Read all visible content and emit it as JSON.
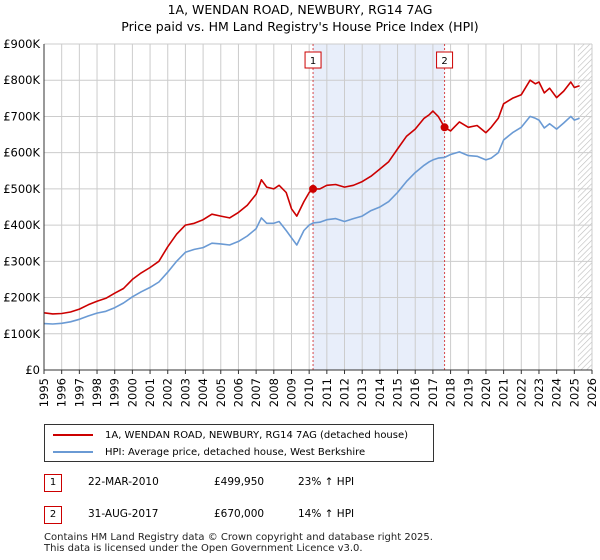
{
  "header": {
    "title": "1A, WENDAN ROAD, NEWBURY, RG14 7AG",
    "subtitle": "Price paid vs. HM Land Registry's House Price Index (HPI)"
  },
  "colors": {
    "property": "#cc0000",
    "hpi": "#6a9ad4",
    "band": "#e8eefa",
    "marker_border": "#cc0000",
    "grid": "#cccccc"
  },
  "chart_data": {
    "type": "line",
    "title": "1A, WENDAN ROAD, NEWBURY, RG14 7AG",
    "subtitle": "Price paid vs. HM Land Registry's House Price Index (HPI)",
    "xlabel": "",
    "ylabel": "",
    "xlim": [
      1995,
      2026
    ],
    "ylim": [
      0,
      900000
    ],
    "grid": true,
    "x_ticks": [
      "1995",
      "1996",
      "1997",
      "1998",
      "1999",
      "2000",
      "2001",
      "2002",
      "2003",
      "2004",
      "2005",
      "2006",
      "2007",
      "2008",
      "2009",
      "2010",
      "2011",
      "2012",
      "2013",
      "2014",
      "2015",
      "2016",
      "2017",
      "2018",
      "2019",
      "2020",
      "2021",
      "2022",
      "2023",
      "2024",
      "2025",
      "2026"
    ],
    "y_ticks": [
      {
        "value": 0,
        "label": "£0"
      },
      {
        "value": 100000,
        "label": "£100K"
      },
      {
        "value": 200000,
        "label": "£200K"
      },
      {
        "value": 300000,
        "label": "£300K"
      },
      {
        "value": 400000,
        "label": "£400K"
      },
      {
        "value": 500000,
        "label": "£500K"
      },
      {
        "value": 600000,
        "label": "£600K"
      },
      {
        "value": 700000,
        "label": "£700K"
      },
      {
        "value": 800000,
        "label": "£800K"
      },
      {
        "value": 900000,
        "label": "£900K"
      }
    ],
    "series": [
      {
        "name": "1A, WENDAN ROAD, NEWBURY, RG14 7AG (detached house)",
        "color": "#cc0000",
        "points": [
          [
            1995.0,
            158000
          ],
          [
            1995.5,
            155000
          ],
          [
            1996.0,
            156000
          ],
          [
            1996.5,
            160000
          ],
          [
            1997.0,
            168000
          ],
          [
            1997.5,
            180000
          ],
          [
            1998.0,
            190000
          ],
          [
            1998.5,
            198000
          ],
          [
            1999.0,
            212000
          ],
          [
            1999.5,
            225000
          ],
          [
            2000.0,
            250000
          ],
          [
            2000.5,
            268000
          ],
          [
            2001.0,
            283000
          ],
          [
            2001.5,
            300000
          ],
          [
            2002.0,
            340000
          ],
          [
            2002.5,
            375000
          ],
          [
            2003.0,
            400000
          ],
          [
            2003.5,
            405000
          ],
          [
            2004.0,
            415000
          ],
          [
            2004.5,
            430000
          ],
          [
            2005.0,
            425000
          ],
          [
            2005.5,
            420000
          ],
          [
            2006.0,
            435000
          ],
          [
            2006.5,
            455000
          ],
          [
            2007.0,
            485000
          ],
          [
            2007.3,
            525000
          ],
          [
            2007.6,
            505000
          ],
          [
            2008.0,
            500000
          ],
          [
            2008.3,
            510000
          ],
          [
            2008.7,
            490000
          ],
          [
            2009.0,
            445000
          ],
          [
            2009.3,
            425000
          ],
          [
            2009.7,
            465000
          ],
          [
            2010.0,
            490000
          ],
          [
            2010.22,
            499950
          ],
          [
            2010.6,
            500000
          ],
          [
            2011.0,
            510000
          ],
          [
            2011.5,
            512000
          ],
          [
            2012.0,
            505000
          ],
          [
            2012.5,
            510000
          ],
          [
            2013.0,
            520000
          ],
          [
            2013.5,
            535000
          ],
          [
            2014.0,
            555000
          ],
          [
            2014.5,
            575000
          ],
          [
            2015.0,
            610000
          ],
          [
            2015.5,
            645000
          ],
          [
            2016.0,
            665000
          ],
          [
            2016.5,
            695000
          ],
          [
            2016.8,
            705000
          ],
          [
            2017.0,
            715000
          ],
          [
            2017.3,
            700000
          ],
          [
            2017.66,
            670000
          ],
          [
            2018.0,
            660000
          ],
          [
            2018.5,
            685000
          ],
          [
            2019.0,
            670000
          ],
          [
            2019.5,
            675000
          ],
          [
            2020.0,
            655000
          ],
          [
            2020.3,
            670000
          ],
          [
            2020.7,
            695000
          ],
          [
            2021.0,
            735000
          ],
          [
            2021.5,
            750000
          ],
          [
            2022.0,
            760000
          ],
          [
            2022.5,
            800000
          ],
          [
            2022.8,
            790000
          ],
          [
            2023.0,
            795000
          ],
          [
            2023.3,
            765000
          ],
          [
            2023.6,
            778000
          ],
          [
            2024.0,
            752000
          ],
          [
            2024.4,
            770000
          ],
          [
            2024.8,
            795000
          ],
          [
            2025.0,
            780000
          ],
          [
            2025.3,
            785000
          ]
        ]
      },
      {
        "name": "HPI: Average price, detached house, West Berkshire",
        "color": "#6a9ad4",
        "points": [
          [
            1995.0,
            128000
          ],
          [
            1995.5,
            127000
          ],
          [
            1996.0,
            129000
          ],
          [
            1996.5,
            133000
          ],
          [
            1997.0,
            140000
          ],
          [
            1997.5,
            149000
          ],
          [
            1998.0,
            157000
          ],
          [
            1998.5,
            162000
          ],
          [
            1999.0,
            172000
          ],
          [
            1999.5,
            185000
          ],
          [
            2000.0,
            202000
          ],
          [
            2000.5,
            216000
          ],
          [
            2001.0,
            228000
          ],
          [
            2001.5,
            243000
          ],
          [
            2002.0,
            270000
          ],
          [
            2002.5,
            300000
          ],
          [
            2003.0,
            325000
          ],
          [
            2003.5,
            333000
          ],
          [
            2004.0,
            338000
          ],
          [
            2004.5,
            350000
          ],
          [
            2005.0,
            348000
          ],
          [
            2005.5,
            345000
          ],
          [
            2006.0,
            355000
          ],
          [
            2006.5,
            370000
          ],
          [
            2007.0,
            390000
          ],
          [
            2007.3,
            420000
          ],
          [
            2007.6,
            405000
          ],
          [
            2008.0,
            405000
          ],
          [
            2008.3,
            410000
          ],
          [
            2008.7,
            385000
          ],
          [
            2009.0,
            365000
          ],
          [
            2009.3,
            345000
          ],
          [
            2009.7,
            385000
          ],
          [
            2010.0,
            400000
          ],
          [
            2010.22,
            406000
          ],
          [
            2010.6,
            408000
          ],
          [
            2011.0,
            415000
          ],
          [
            2011.5,
            418000
          ],
          [
            2012.0,
            410000
          ],
          [
            2012.5,
            418000
          ],
          [
            2013.0,
            425000
          ],
          [
            2013.5,
            440000
          ],
          [
            2014.0,
            450000
          ],
          [
            2014.5,
            465000
          ],
          [
            2015.0,
            490000
          ],
          [
            2015.5,
            520000
          ],
          [
            2016.0,
            545000
          ],
          [
            2016.5,
            565000
          ],
          [
            2016.8,
            575000
          ],
          [
            2017.0,
            580000
          ],
          [
            2017.3,
            585000
          ],
          [
            2017.66,
            587000
          ],
          [
            2018.0,
            595000
          ],
          [
            2018.5,
            602000
          ],
          [
            2019.0,
            592000
          ],
          [
            2019.5,
            590000
          ],
          [
            2020.0,
            580000
          ],
          [
            2020.3,
            585000
          ],
          [
            2020.7,
            600000
          ],
          [
            2021.0,
            635000
          ],
          [
            2021.5,
            655000
          ],
          [
            2022.0,
            670000
          ],
          [
            2022.5,
            700000
          ],
          [
            2022.8,
            695000
          ],
          [
            2023.0,
            690000
          ],
          [
            2023.3,
            668000
          ],
          [
            2023.6,
            680000
          ],
          [
            2024.0,
            665000
          ],
          [
            2024.4,
            682000
          ],
          [
            2024.8,
            700000
          ],
          [
            2025.0,
            690000
          ],
          [
            2025.3,
            695000
          ]
        ]
      }
    ],
    "shaded_range": {
      "x": [
        2010.22,
        2017.66
      ]
    },
    "annotations": [
      {
        "label": "1",
        "x": 2010.22,
        "y": 499950
      },
      {
        "label": "2",
        "x": 2017.66,
        "y": 670000
      }
    ],
    "forecast_hatch_from": 2025.2
  },
  "legend": {
    "items": [
      {
        "label": "1A, WENDAN ROAD, NEWBURY, RG14 7AG (detached house)"
      },
      {
        "label": "HPI: Average price, detached house, West Berkshire"
      }
    ]
  },
  "transactions": [
    {
      "num": "1",
      "date": "22-MAR-2010",
      "price": "£499,950",
      "change": "23% ↑ HPI"
    },
    {
      "num": "2",
      "date": "31-AUG-2017",
      "price": "£670,000",
      "change": "14% ↑ HPI"
    }
  ],
  "footer": {
    "line1": "Contains HM Land Registry data © Crown copyright and database right 2025.",
    "line2": "This data is licensed under the Open Government Licence v3.0."
  }
}
